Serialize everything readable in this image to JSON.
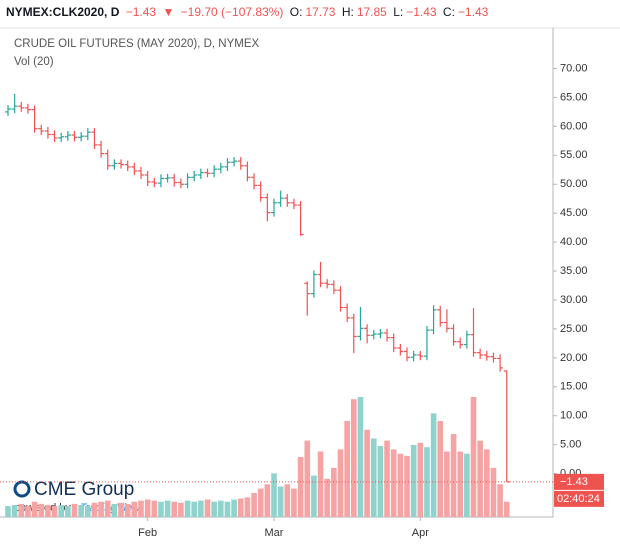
{
  "header": {
    "symbol": "NYMEX:CLK2020, D",
    "last": "−1.43",
    "arrow": "▼",
    "change": "−19.70 (−107.83%)",
    "o_label": "O:",
    "o": "17.73",
    "h_label": "H:",
    "h": "17.85",
    "l_label": "L:",
    "l": "−1.43",
    "c_label": "C:",
    "c": "−1.43"
  },
  "logo": {
    "name": "CME Group",
    "powered": "powered by",
    "brand": "TradingView"
  },
  "chart_data": {
    "type": "ohlc",
    "title": "CRUDE OIL FUTURES (MAY 2020), D, NYMEX",
    "subtitle": "Vol (20)",
    "categories": [
      null,
      null,
      null,
      null,
      null,
      null,
      null,
      null,
      null,
      null,
      null,
      null,
      null,
      null,
      null,
      null,
      null,
      null,
      null,
      null,
      null,
      "Feb",
      null,
      null,
      null,
      null,
      null,
      null,
      null,
      null,
      null,
      null,
      null,
      null,
      null,
      null,
      null,
      null,
      null,
      null,
      "Mar",
      null,
      null,
      null,
      null,
      null,
      null,
      null,
      null,
      null,
      null,
      null,
      null,
      null,
      null,
      null,
      null,
      null,
      null,
      null,
      null,
      null,
      "Apr",
      null,
      null,
      null,
      null,
      null,
      null,
      null,
      null,
      null,
      null,
      null,
      null,
      null
    ],
    "open": [
      62.5,
      63,
      63.5,
      63.2,
      62.9,
      59.6,
      59.2,
      58.6,
      58.0,
      58.2,
      58.5,
      58.1,
      58.3,
      59.0,
      56.8,
      55.3,
      53.2,
      53.6,
      53.4,
      53.0,
      52.3,
      51.6,
      50.4,
      50.2,
      51.0,
      51.1,
      50.3,
      50.0,
      51.2,
      51.6,
      52.0,
      51.9,
      52.6,
      53.0,
      53.8,
      54.0,
      53.2,
      51.2,
      49.8,
      47.7,
      45.1,
      46.8,
      47.6,
      46.8,
      46.4,
      32.9,
      31.1,
      34.4,
      32.9,
      32.7,
      31.7,
      28.7,
      26.9,
      23.7,
      25.1,
      23.9,
      24.1,
      24.3,
      23.5,
      21.7,
      21.1,
      20.1,
      20.5,
      20.3,
      24.8,
      28.3,
      26.1,
      25.1,
      22.8,
      22.3,
      24.0,
      20.9,
      20.5,
      20.2,
      19.9,
      17.73
    ],
    "high": [
      63.7,
      65.6,
      64.2,
      63.9,
      63.6,
      60.3,
      59.9,
      59.3,
      58.9,
      59.2,
      59.2,
      59.0,
      59.7,
      59.7,
      57.5,
      56.0,
      54.3,
      54.3,
      54.1,
      53.7,
      53.0,
      52.3,
      51.1,
      51.7,
      51.8,
      51.8,
      51.0,
      51.9,
      52.3,
      52.7,
      52.7,
      53.3,
      53.7,
      54.5,
      54.7,
      54.7,
      53.9,
      51.9,
      50.5,
      48.4,
      47.5,
      48.9,
      48.3,
      47.5,
      47.1,
      33.2,
      35.1,
      36.6,
      33.6,
      33.4,
      32.4,
      29.4,
      27.6,
      28.8,
      25.8,
      24.8,
      25.0,
      25.0,
      24.2,
      22.4,
      21.8,
      21.2,
      21.2,
      25.5,
      29.1,
      29.0,
      28.4,
      25.8,
      23.5,
      24.7,
      28.6,
      21.6,
      21.2,
      20.9,
      20.6,
      17.85
    ],
    "low": [
      61.8,
      62.3,
      62.5,
      62.2,
      58.9,
      58.5,
      57.9,
      57.3,
      57.3,
      57.5,
      57.4,
      57.4,
      57.6,
      56.1,
      54.6,
      52.5,
      52.5,
      52.7,
      52.3,
      51.6,
      50.9,
      49.7,
      49.5,
      49.5,
      50.3,
      49.6,
      49.3,
      49.3,
      50.5,
      50.9,
      51.2,
      51.2,
      51.9,
      52.3,
      53.1,
      52.5,
      50.5,
      49.1,
      47.0,
      43.6,
      44.4,
      46.1,
      46.1,
      45.7,
      41.1,
      27.3,
      30.4,
      32.2,
      32.0,
      31.0,
      28.0,
      26.2,
      20.8,
      23.0,
      22.5,
      23.2,
      23.4,
      22.8,
      21.0,
      20.4,
      19.4,
      19.4,
      19.6,
      19.6,
      24.1,
      25.4,
      24.4,
      22.1,
      21.6,
      21.6,
      20.2,
      19.8,
      19.5,
      19.2,
      17.6,
      -1.43
    ],
    "close": [
      63,
      63.5,
      63.2,
      62.9,
      59.6,
      59.2,
      58.6,
      58.0,
      58.2,
      58.5,
      58.1,
      58.3,
      59.0,
      56.8,
      55.3,
      53.2,
      53.6,
      53.4,
      53.0,
      52.3,
      51.6,
      50.4,
      50.2,
      51.0,
      51.1,
      50.3,
      50.0,
      51.2,
      51.6,
      52.0,
      51.9,
      52.6,
      53.0,
      53.8,
      54.0,
      53.2,
      51.2,
      49.8,
      47.7,
      45.1,
      46.8,
      47.6,
      46.8,
      46.4,
      41.3,
      31.1,
      34.4,
      32.9,
      32.7,
      31.7,
      28.7,
      26.9,
      23.7,
      25.1,
      23.9,
      24.1,
      24.3,
      23.5,
      21.7,
      21.1,
      20.1,
      20.5,
      20.3,
      24.8,
      28.3,
      26.1,
      25.1,
      22.8,
      22.3,
      24.0,
      20.9,
      20.5,
      20.2,
      19.9,
      18.27,
      -1.43
    ],
    "volume": [
      10,
      11,
      12,
      10,
      14,
      12,
      11,
      10,
      11,
      10,
      12,
      11,
      10,
      13,
      14,
      15,
      12,
      13,
      12,
      14,
      15,
      16,
      15,
      14,
      15,
      14,
      13,
      15,
      14,
      15,
      16,
      14,
      15,
      14,
      16,
      17,
      18,
      22,
      26,
      30,
      40,
      28,
      30,
      26,
      55,
      70,
      38,
      60,
      35,
      45,
      62,
      88,
      108,
      110,
      80,
      72,
      65,
      70,
      62,
      58,
      56,
      66,
      68,
      64,
      95,
      88,
      60,
      76,
      60,
      58,
      110,
      70,
      62,
      45,
      30,
      14
    ],
    "up_color": "#26a69a",
    "down_color": "#ef5350",
    "volume_up_color": "#8fd3cc",
    "volume_down_color": "#f5a3a3",
    "ylim": [
      -7.5,
      77
    ],
    "yticks": [
      {
        "value": 0,
        "label": "0.00"
      },
      {
        "value": 5,
        "label": "5.00"
      },
      {
        "value": 10,
        "label": "10.00"
      },
      {
        "value": 15,
        "label": "15.00"
      },
      {
        "value": 20,
        "label": "20.00"
      },
      {
        "value": 25,
        "label": "25.00"
      },
      {
        "value": 30,
        "label": "30.00"
      },
      {
        "value": 35,
        "label": "35.00"
      },
      {
        "value": 40,
        "label": "40.00"
      },
      {
        "value": 45,
        "label": "45.00"
      },
      {
        "value": 50,
        "label": "50.00"
      },
      {
        "value": 55,
        "label": "55.00"
      },
      {
        "value": 60,
        "label": "60.00"
      },
      {
        "value": 65,
        "label": "65.00"
      },
      {
        "value": 70,
        "label": "70.00"
      }
    ],
    "last_price": {
      "value": -1.43,
      "label": "−1.43"
    },
    "countdown": "02:40:24"
  }
}
